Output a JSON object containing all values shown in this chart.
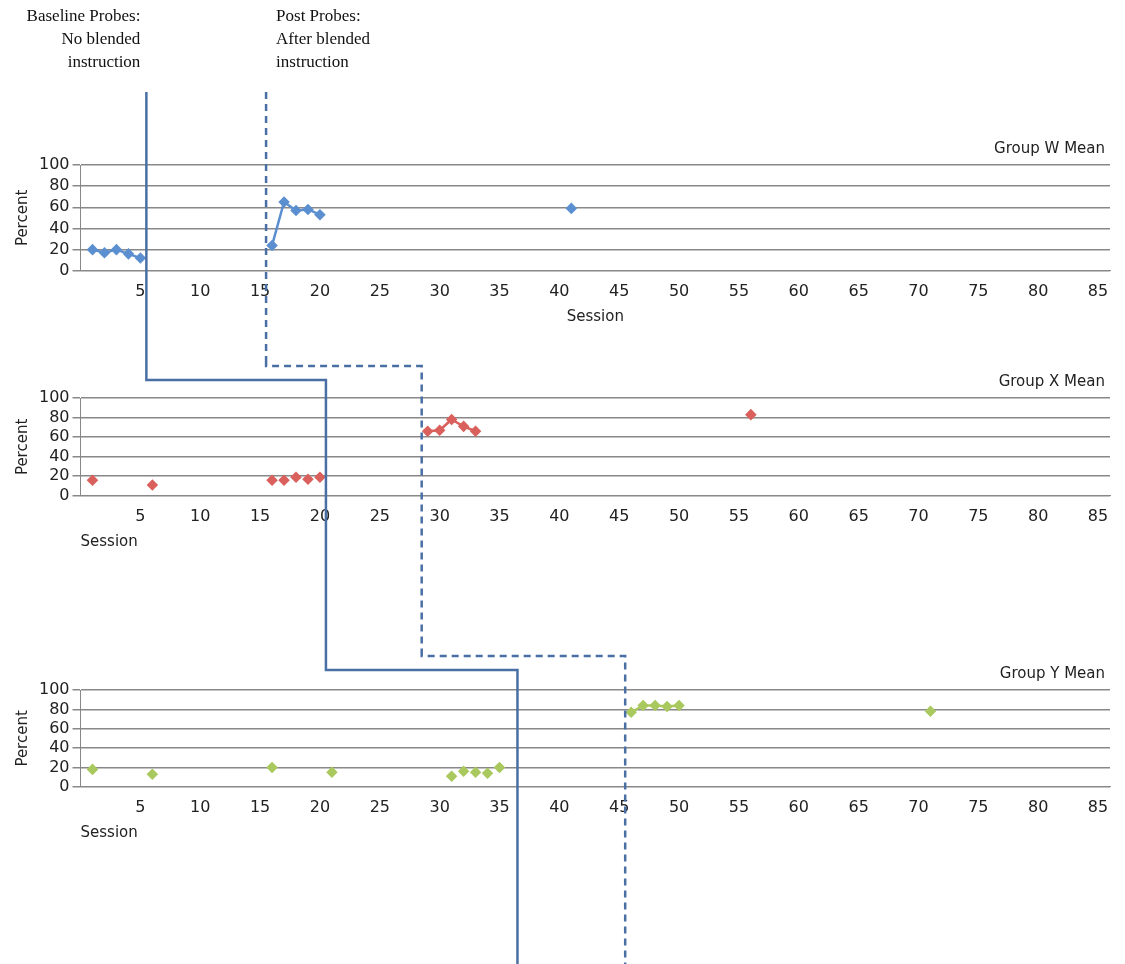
{
  "chart_data": [
    {
      "type": "line",
      "title": "Group W Mean",
      "xlabel": "Session",
      "ylabel": "Percent",
      "xlim": [
        0,
        86
      ],
      "xticks": [
        5,
        10,
        15,
        20,
        25,
        30,
        35,
        40,
        45,
        50,
        55,
        60,
        65,
        70,
        75,
        80,
        85
      ],
      "ylim": [
        0,
        100
      ],
      "yticks": [
        0,
        20,
        40,
        60,
        80,
        100
      ],
      "grid": "y",
      "legend": false,
      "marker": "diamond",
      "series": [
        {
          "color": "#5b8fd0",
          "x": [
            1,
            2,
            3,
            4,
            5
          ],
          "values": [
            20,
            17,
            20,
            16,
            12
          ]
        },
        {
          "color": "#5b8fd0",
          "x": [
            16,
            17,
            18,
            19,
            20
          ],
          "values": [
            24,
            65,
            57,
            58,
            53
          ]
        },
        {
          "color": "#5b8fd0",
          "type": "scatter",
          "x": [
            41
          ],
          "values": [
            59
          ]
        }
      ],
      "ref_lines": [
        {
          "axis": "x",
          "value": 5.5,
          "label": "Baseline Probes: No blended instruction",
          "color": "#4a6fa5",
          "line_style": "solid"
        },
        {
          "axis": "x",
          "value": 15.5,
          "label": "Post Probes: After blended instruction",
          "color": "#4a6fa5",
          "line_style": "dashed"
        }
      ]
    },
    {
      "type": "scatter",
      "title": "Group X Mean",
      "xlabel": "Session",
      "ylabel": "Percent",
      "xlim": [
        0,
        86
      ],
      "xticks": [
        5,
        10,
        15,
        20,
        25,
        30,
        35,
        40,
        45,
        50,
        55,
        60,
        65,
        70,
        75,
        80,
        85
      ],
      "ylim": [
        0,
        100
      ],
      "yticks": [
        0,
        20,
        40,
        60,
        80,
        100
      ],
      "grid": "y",
      "legend": false,
      "marker": "diamond",
      "series": [
        {
          "color": "#d9605c",
          "x": [
            1,
            6,
            16,
            17,
            18,
            19,
            20
          ],
          "values": [
            16,
            11,
            16,
            16,
            19,
            17,
            19
          ]
        },
        {
          "color": "#d9605c",
          "type": "line",
          "x": [
            29,
            30,
            31,
            32,
            33
          ],
          "values": [
            66,
            67,
            78,
            71,
            66
          ]
        },
        {
          "color": "#d9605c",
          "x": [
            56
          ],
          "values": [
            83
          ]
        }
      ],
      "ref_lines": [
        {
          "axis": "x",
          "value": 20.5,
          "color": "#4a6fa5",
          "line_style": "solid"
        },
        {
          "axis": "x",
          "value": 28.5,
          "color": "#4a6fa5",
          "line_style": "dashed"
        }
      ]
    },
    {
      "type": "scatter",
      "title": "Group Y Mean",
      "xlabel": "Session",
      "ylabel": "Percent",
      "xlim": [
        0,
        86
      ],
      "xticks": [
        5,
        10,
        15,
        20,
        25,
        30,
        35,
        40,
        45,
        50,
        55,
        60,
        65,
        70,
        75,
        80,
        85
      ],
      "ylim": [
        0,
        100
      ],
      "yticks": [
        0,
        20,
        40,
        60,
        80,
        100
      ],
      "grid": "y",
      "legend": false,
      "marker": "diamond",
      "series": [
        {
          "color": "#a9c95e",
          "x": [
            1,
            6,
            16,
            21,
            31,
            32,
            33,
            34,
            35
          ],
          "values": [
            18,
            13,
            20,
            15,
            11,
            16,
            15,
            14,
            20
          ]
        },
        {
          "color": "#a9c95e",
          "type": "line",
          "x": [
            46,
            47,
            48,
            49,
            50
          ],
          "values": [
            77,
            84,
            84,
            83,
            84
          ]
        },
        {
          "color": "#a9c95e",
          "x": [
            71
          ],
          "values": [
            78
          ]
        }
      ],
      "ref_lines": [
        {
          "axis": "x",
          "value": 36.5,
          "color": "#4a6fa5",
          "line_style": "solid"
        },
        {
          "axis": "x",
          "value": 45.5,
          "color": "#4a6fa5",
          "line_style": "dashed"
        }
      ]
    }
  ]
}
